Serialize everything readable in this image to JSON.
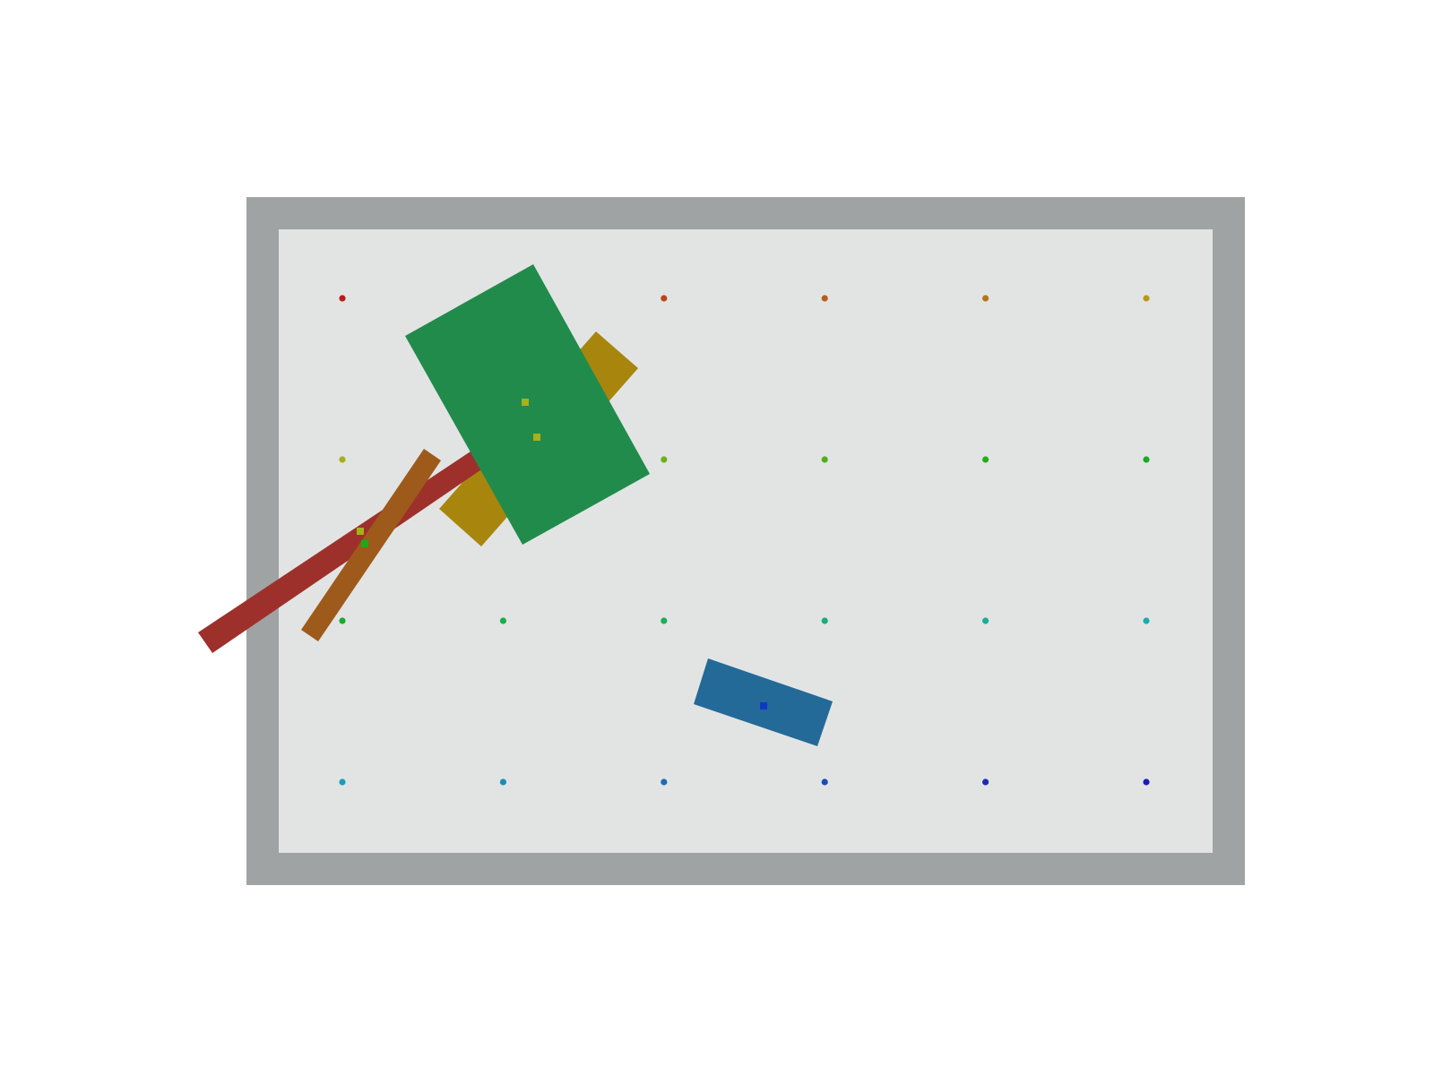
{
  "scene": {
    "colors": {
      "background": "#ffffff",
      "wall": "#a0a3a4",
      "floor": "#e2e4e4"
    }
  },
  "blocks": [
    {
      "id": "red-bar",
      "color": "#9e302b"
    },
    {
      "id": "orange-bar",
      "color": "#9e5a1a"
    },
    {
      "id": "mustard-block",
      "color": "#a8860e"
    },
    {
      "id": "green-block",
      "color": "#218b4b"
    },
    {
      "id": "blue-block",
      "color": "#236a98"
    }
  ],
  "goal_markers": [
    {
      "color": "#a8b01a"
    },
    {
      "color": "#22a61a"
    },
    {
      "color": "#a8b01a"
    },
    {
      "color": "#a8b01a"
    },
    {
      "color": "#1036c8"
    }
  ],
  "grid_dots": [
    [
      "#b81a1a",
      "#b8301a",
      "#b8461a",
      "#b85e1a",
      "#b8741a",
      "#b89a1a"
    ],
    [
      "#a8ae1a",
      "#8cb01a",
      "#6cb01a",
      "#4cb01a",
      "#2caa1a",
      "#1aaa22"
    ],
    [
      "#1aaa2e",
      "#1aae46",
      "#1aae5a",
      "#1aae78",
      "#1aae96",
      "#1aaab0"
    ],
    [
      "#1a9eb8",
      "#1a8cb8",
      "#1a6cb8",
      "#1a4cb8",
      "#1a2cb8",
      "#1a1ab8"
    ]
  ]
}
